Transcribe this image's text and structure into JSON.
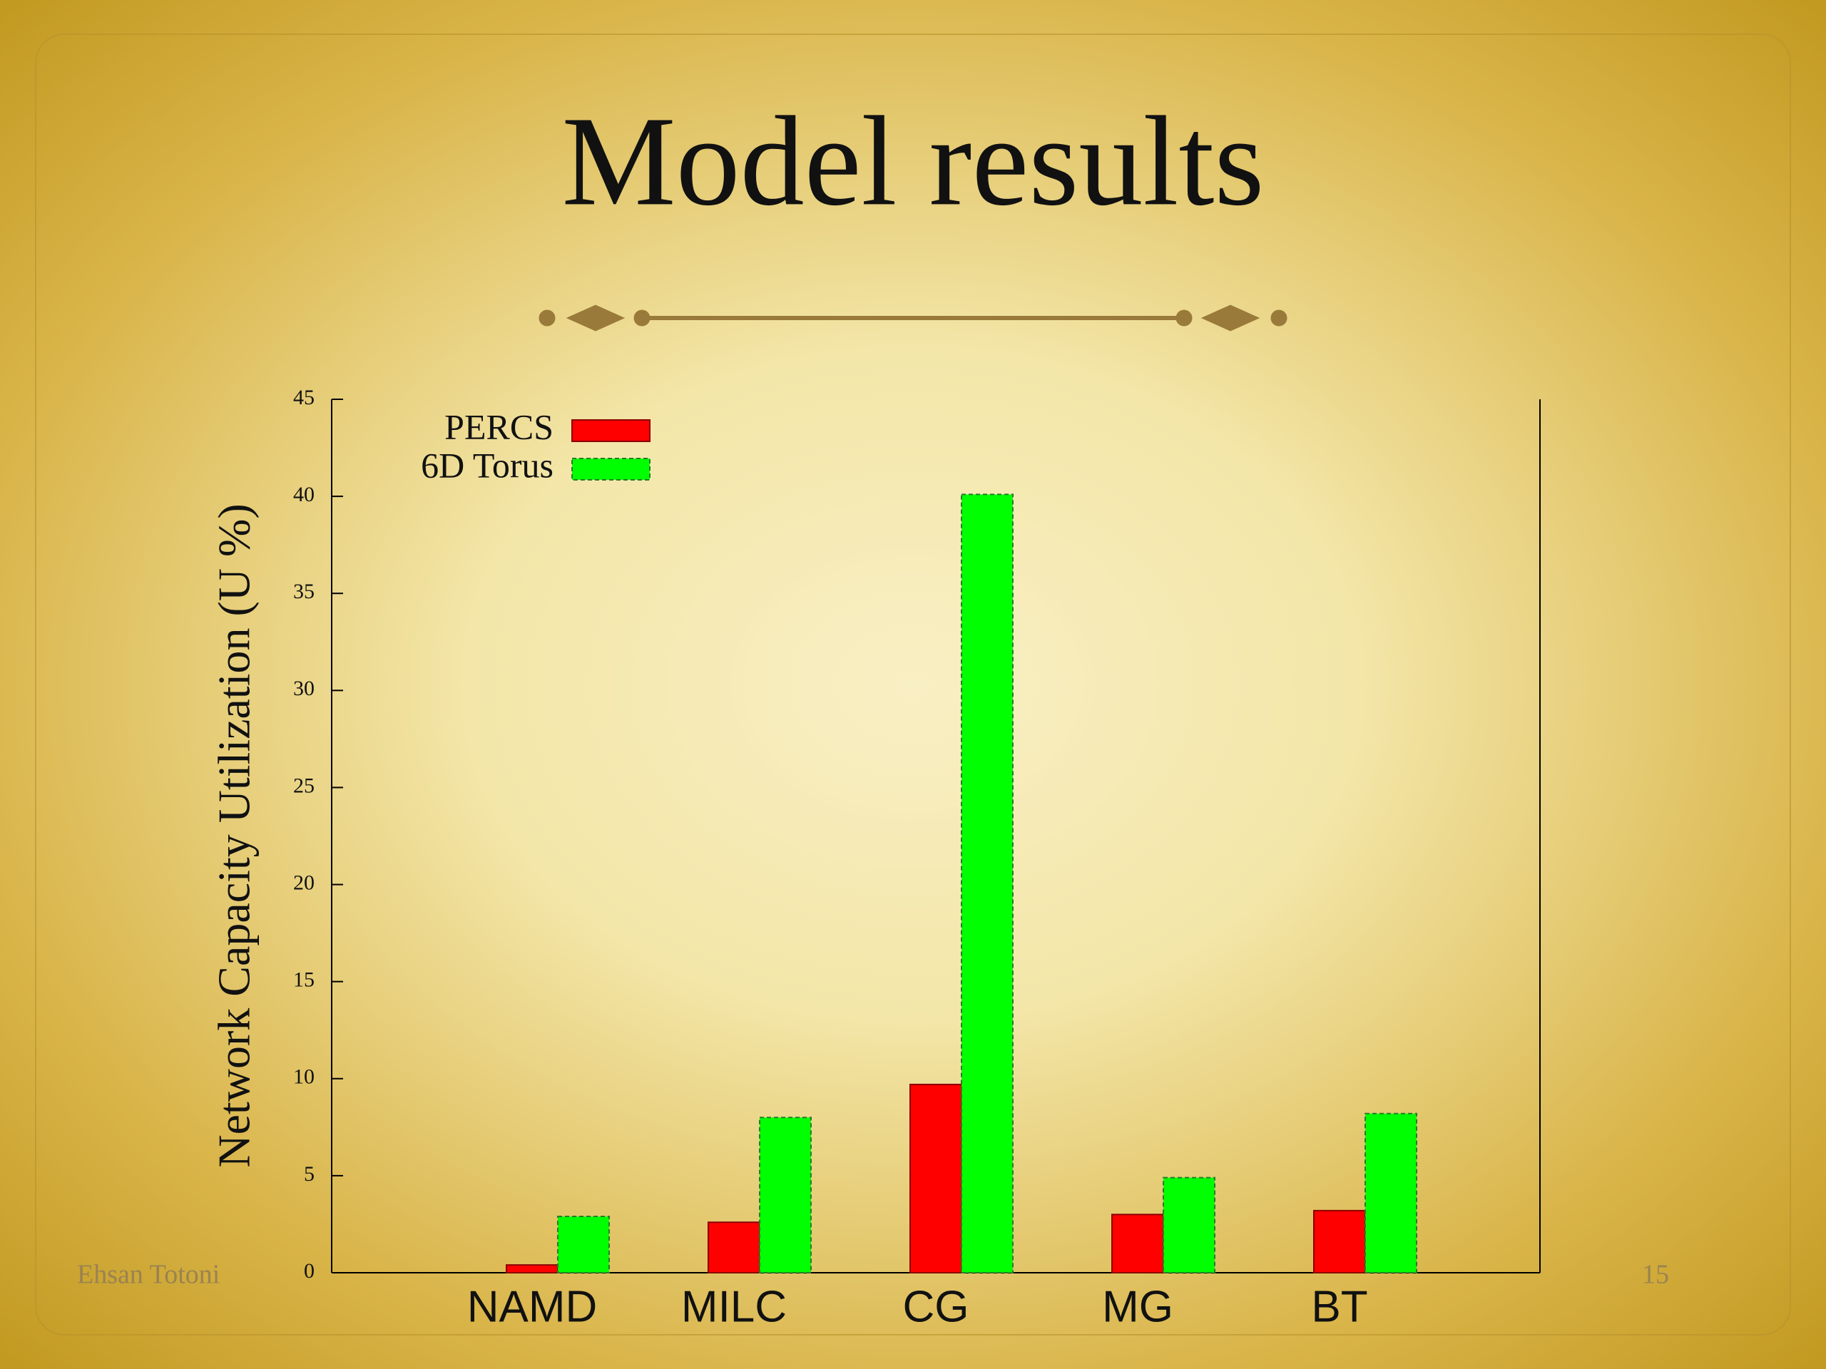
{
  "slide": {
    "title": "Model results",
    "footer": "Ehsan Totoni",
    "page_number": "15"
  },
  "chart_data": {
    "type": "bar",
    "y_label": "Network Capacity Utilization (U %)",
    "categories": [
      "NAMD",
      "MILC",
      "CG",
      "MG",
      "BT"
    ],
    "series": [
      {
        "name": "PERCS",
        "color": "#ff0000",
        "values": [
          0.4,
          2.6,
          9.7,
          3.0,
          3.2
        ]
      },
      {
        "name": "6D Torus",
        "color": "#00ff00",
        "values": [
          2.9,
          8.0,
          40.1,
          4.9,
          8.2
        ]
      }
    ],
    "ylim": [
      0,
      45
    ],
    "yticks": [
      0,
      5,
      10,
      15,
      20,
      25,
      30,
      35,
      40,
      45
    ],
    "legend": "top-left",
    "grid": false
  }
}
